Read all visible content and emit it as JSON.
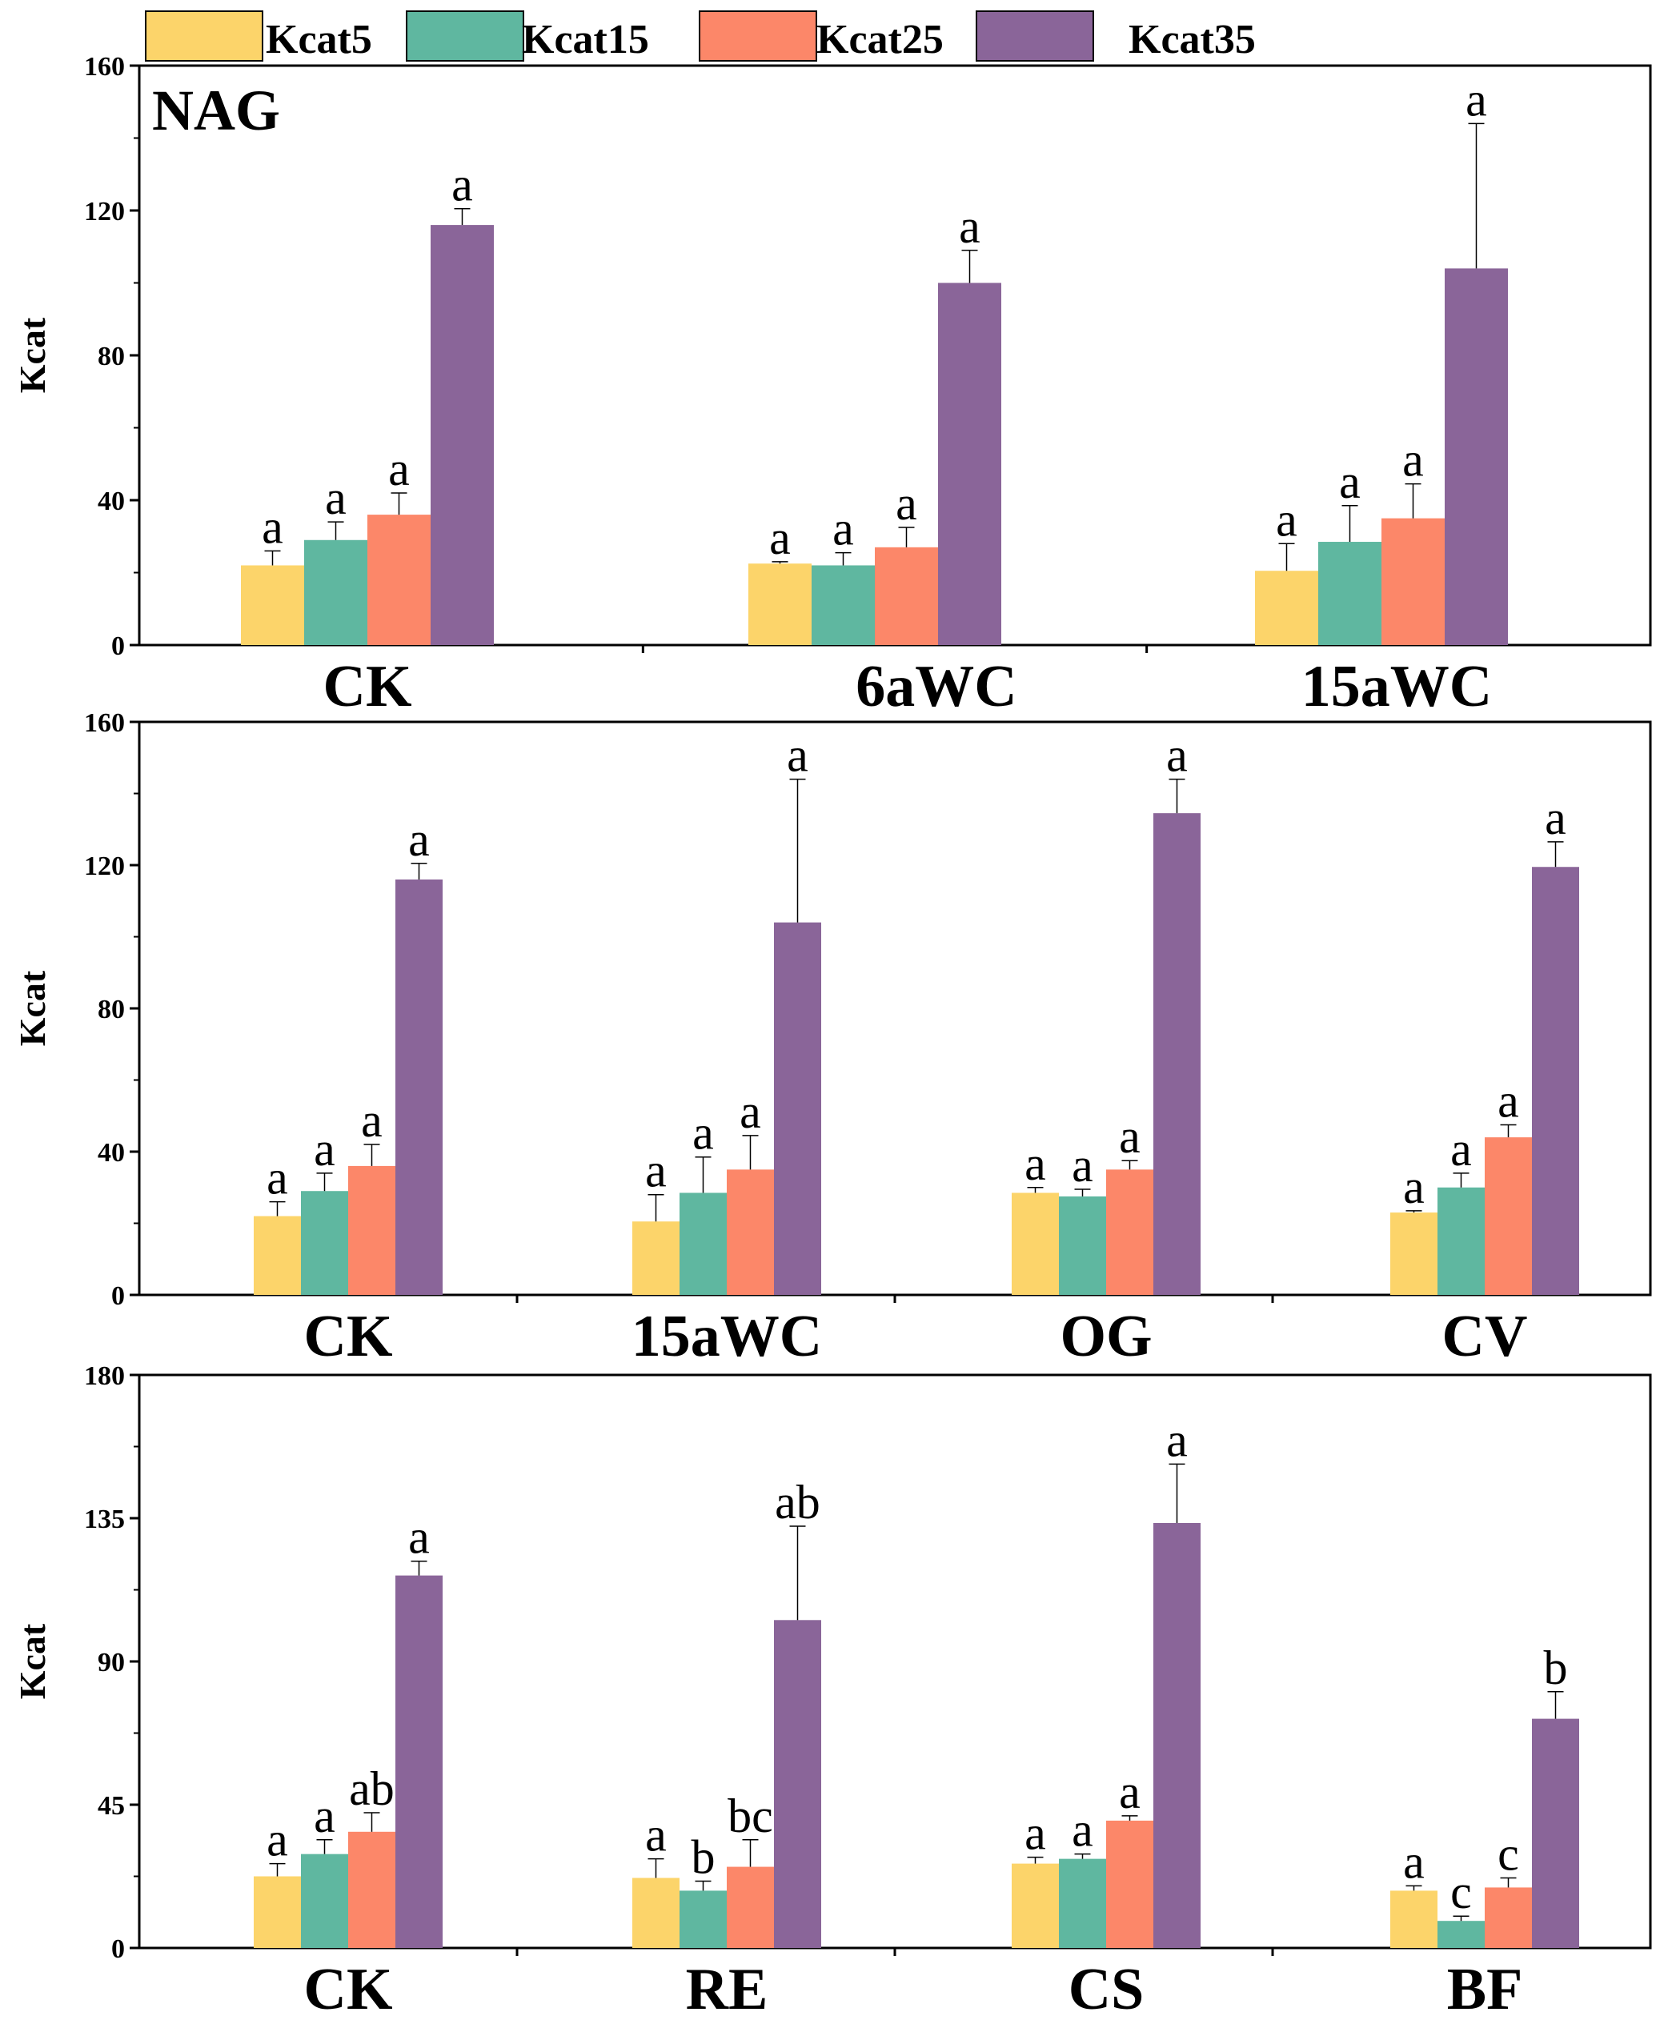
{
  "legend": {
    "items": [
      {
        "name": "Kcat5",
        "color": "#FCD46A"
      },
      {
        "name": "Kcat15",
        "color": "#5FB7A0"
      },
      {
        "name": "Kcat25",
        "color": "#FC8769"
      },
      {
        "name": "Kcat35",
        "color": "#8A6599"
      }
    ]
  },
  "chart_data": [
    {
      "type": "bar",
      "title": "NAG",
      "ylabel": "Kcat",
      "ylim": [
        0,
        160
      ],
      "yticks": [
        0,
        40,
        80,
        120,
        160
      ],
      "categories": [
        "CK",
        "6aWC",
        "15aWC"
      ],
      "series": [
        {
          "name": "Kcat5",
          "values": [
            22,
            22.5,
            20.5
          ],
          "errors": [
            4,
            0.5,
            7.5
          ],
          "labels": [
            "a",
            "a",
            "a"
          ]
        },
        {
          "name": "Kcat15",
          "values": [
            29,
            22,
            28.5
          ],
          "errors": [
            5,
            3.5,
            10
          ],
          "labels": [
            "a",
            "a",
            "a"
          ]
        },
        {
          "name": "Kcat25",
          "values": [
            36,
            27,
            35
          ],
          "errors": [
            6,
            5.5,
            9.5
          ],
          "labels": [
            "a",
            "a",
            "a"
          ]
        },
        {
          "name": "Kcat35",
          "values": [
            116,
            100,
            104
          ],
          "errors": [
            4.5,
            9,
            40
          ],
          "labels": [
            "a",
            "a",
            "a"
          ]
        }
      ]
    },
    {
      "type": "bar",
      "title": "",
      "ylabel": "Kcat",
      "ylim": [
        0,
        160
      ],
      "yticks": [
        0,
        40,
        80,
        120,
        160
      ],
      "categories": [
        "CK",
        "15aWC",
        "OG",
        "CV"
      ],
      "series": [
        {
          "name": "Kcat5",
          "values": [
            22,
            20.5,
            28.5,
            23
          ],
          "errors": [
            4,
            7.5,
            1.5,
            0.5
          ],
          "labels": [
            "a",
            "a",
            "a",
            "a"
          ]
        },
        {
          "name": "Kcat15",
          "values": [
            29,
            28.5,
            27.5,
            30
          ],
          "errors": [
            5,
            10,
            2,
            4
          ],
          "labels": [
            "a",
            "a",
            "a",
            "a"
          ]
        },
        {
          "name": "Kcat25",
          "values": [
            36,
            35,
            35,
            44
          ],
          "errors": [
            6,
            9.5,
            2.5,
            3.5
          ],
          "labels": [
            "a",
            "a",
            "a",
            "a"
          ]
        },
        {
          "name": "Kcat35",
          "values": [
            116,
            104,
            134.5,
            119.5
          ],
          "errors": [
            4.5,
            40,
            9.5,
            7
          ],
          "labels": [
            "a",
            "a",
            "a",
            "a"
          ]
        }
      ]
    },
    {
      "type": "bar",
      "title": "",
      "ylabel": "Kcat",
      "ylim": [
        0,
        180
      ],
      "yticks": [
        0,
        45,
        90,
        135,
        180
      ],
      "categories": [
        "CK",
        "RE",
        "CS",
        "BF"
      ],
      "series": [
        {
          "name": "Kcat5",
          "values": [
            22.5,
            22,
            26.5,
            18
          ],
          "errors": [
            4,
            6,
            2,
            1.5
          ],
          "labels": [
            "a",
            "a",
            "a",
            "a"
          ]
        },
        {
          "name": "Kcat15",
          "values": [
            29.5,
            18,
            28,
            8.5
          ],
          "errors": [
            4.5,
            3,
            1.5,
            1.5
          ],
          "labels": [
            "a",
            "b",
            "a",
            "c"
          ]
        },
        {
          "name": "Kcat25",
          "values": [
            36.5,
            25.5,
            40,
            19
          ],
          "errors": [
            6,
            8.5,
            1.5,
            3
          ],
          "labels": [
            "ab",
            "bc",
            "a",
            "c"
          ]
        },
        {
          "name": "Kcat35",
          "values": [
            117,
            103,
            133.5,
            72
          ],
          "errors": [
            4.5,
            29.5,
            18.5,
            8.5
          ],
          "labels": [
            "a",
            "ab",
            "a",
            "b"
          ]
        }
      ]
    }
  ]
}
